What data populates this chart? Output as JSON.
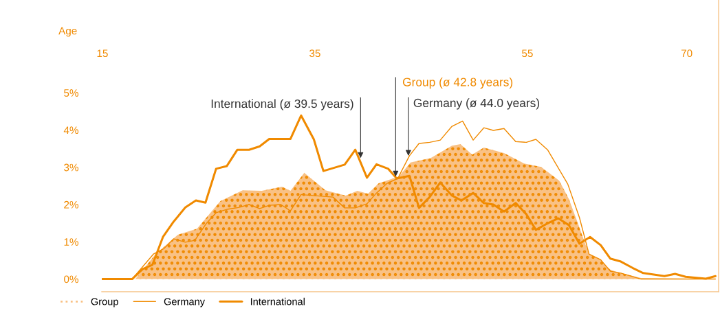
{
  "chart_data": {
    "type": "line",
    "xlabel": "Age",
    "xlim": [
      14.94,
      73.0
    ],
    "xticks": [
      15,
      35,
      55,
      70
    ],
    "ylim": [
      -0.34,
      7.49
    ],
    "yticks": [
      {
        "value": 0,
        "label": "0%"
      },
      {
        "value": 1,
        "label": "1%"
      },
      {
        "value": 2,
        "label": "2%"
      },
      {
        "value": 3,
        "label": "3%"
      },
      {
        "value": 4,
        "label": "4%"
      },
      {
        "value": 5,
        "label": "5%"
      }
    ],
    "grid": false,
    "legend": "bottom left",
    "series": [
      {
        "name": "Group",
        "type": "area",
        "color": "#f9c184",
        "x": [
          15.0,
          18.1,
          20.0,
          22.1,
          23.9,
          26.1,
          28.2,
          30.0,
          31.9,
          32.7,
          34.0,
          34.9,
          36.0,
          37.9,
          39.0,
          40.0,
          41.0,
          42.9,
          44.0,
          45.9,
          47.9,
          48.7,
          49.8,
          50.9,
          52.8,
          54.7,
          56.3,
          58.0,
          58.9,
          59.7,
          60.8,
          61.9,
          62.8,
          63.8,
          65.7,
          72.7
        ],
        "values": [
          0.0,
          0.0,
          0.67,
          1.19,
          1.35,
          2.09,
          2.38,
          2.37,
          2.48,
          2.37,
          2.85,
          2.64,
          2.38,
          2.24,
          2.37,
          2.29,
          2.57,
          2.75,
          3.13,
          3.25,
          3.58,
          3.62,
          3.34,
          3.53,
          3.38,
          3.1,
          3.01,
          2.64,
          2.15,
          1.54,
          0.67,
          0.52,
          0.25,
          0.16,
          0.03,
          0.0
        ]
      },
      {
        "name": "Germany",
        "color": "#f08a00",
        "x": [
          15.0,
          17.8,
          19.8,
          20.8,
          21.7,
          22.8,
          23.7,
          24.8,
          25.7,
          26.7,
          27.8,
          28.8,
          29.8,
          30.7,
          31.8,
          32.7,
          33.7,
          34.0,
          36.7,
          37.8,
          38.8,
          39.9,
          40.8,
          41.8,
          42.8,
          43.9,
          44.8,
          45.8,
          46.8,
          47.9,
          48.9,
          49.9,
          50.9,
          51.8,
          52.8,
          53.9,
          54.9,
          55.8,
          56.9,
          58.8,
          59.9,
          60.8,
          61.9,
          62.8,
          63.8,
          65.7,
          72.7
        ],
        "values": [
          0.0,
          0.0,
          0.67,
          0.82,
          1.08,
          0.99,
          1.04,
          1.5,
          1.78,
          1.87,
          1.92,
          2.0,
          1.89,
          1.98,
          2.0,
          1.83,
          2.27,
          2.26,
          2.2,
          1.91,
          1.91,
          2.02,
          2.31,
          2.57,
          2.7,
          3.31,
          3.64,
          3.67,
          3.73,
          4.1,
          4.24,
          3.73,
          4.06,
          3.99,
          4.04,
          3.69,
          3.67,
          3.75,
          3.47,
          2.55,
          1.65,
          0.67,
          0.52,
          0.21,
          0.16,
          0.0,
          0.0
        ]
      },
      {
        "name": "International",
        "color": "#f08a00",
        "x": [
          15.0,
          17.8,
          18.8,
          19.7,
          20.7,
          21.7,
          22.8,
          23.8,
          24.7,
          25.7,
          26.7,
          27.7,
          28.8,
          29.8,
          30.7,
          32.7,
          33.7,
          34.9,
          35.8,
          37.8,
          38.8,
          39.9,
          40.8,
          41.9,
          42.7,
          43.9,
          44.8,
          45.8,
          46.8,
          47.9,
          48.8,
          49.9,
          50.9,
          51.8,
          52.8,
          53.9,
          54.9,
          55.8,
          56.8,
          57.9,
          58.9,
          59.9,
          60.9,
          61.9,
          62.8,
          63.8,
          64.9,
          65.9,
          67.9,
          68.9,
          69.9,
          71.8,
          72.7
        ],
        "values": [
          0.0,
          0.0,
          0.27,
          0.38,
          1.13,
          1.54,
          1.92,
          2.11,
          2.05,
          2.96,
          3.03,
          3.47,
          3.47,
          3.56,
          3.76,
          3.76,
          4.39,
          3.75,
          2.9,
          3.07,
          3.47,
          2.72,
          3.08,
          2.96,
          2.7,
          2.77,
          1.91,
          2.2,
          2.59,
          2.24,
          2.11,
          2.31,
          2.04,
          2.0,
          1.81,
          2.04,
          1.74,
          1.32,
          1.48,
          1.63,
          1.45,
          0.95,
          1.13,
          0.91,
          0.55,
          0.47,
          0.3,
          0.16,
          0.08,
          0.14,
          0.06,
          0.01,
          0.08
        ]
      }
    ],
    "annotations": [
      {
        "text": "International (ø 39.5 years)",
        "x": 39.3,
        "y": 3.25
      },
      {
        "text": "Group (ø 42.8 years)",
        "x": 42.6,
        "y": 2.75
      },
      {
        "text": "Germany (ø 44.0 years)",
        "x": 43.8,
        "y": 3.31
      }
    ]
  }
}
